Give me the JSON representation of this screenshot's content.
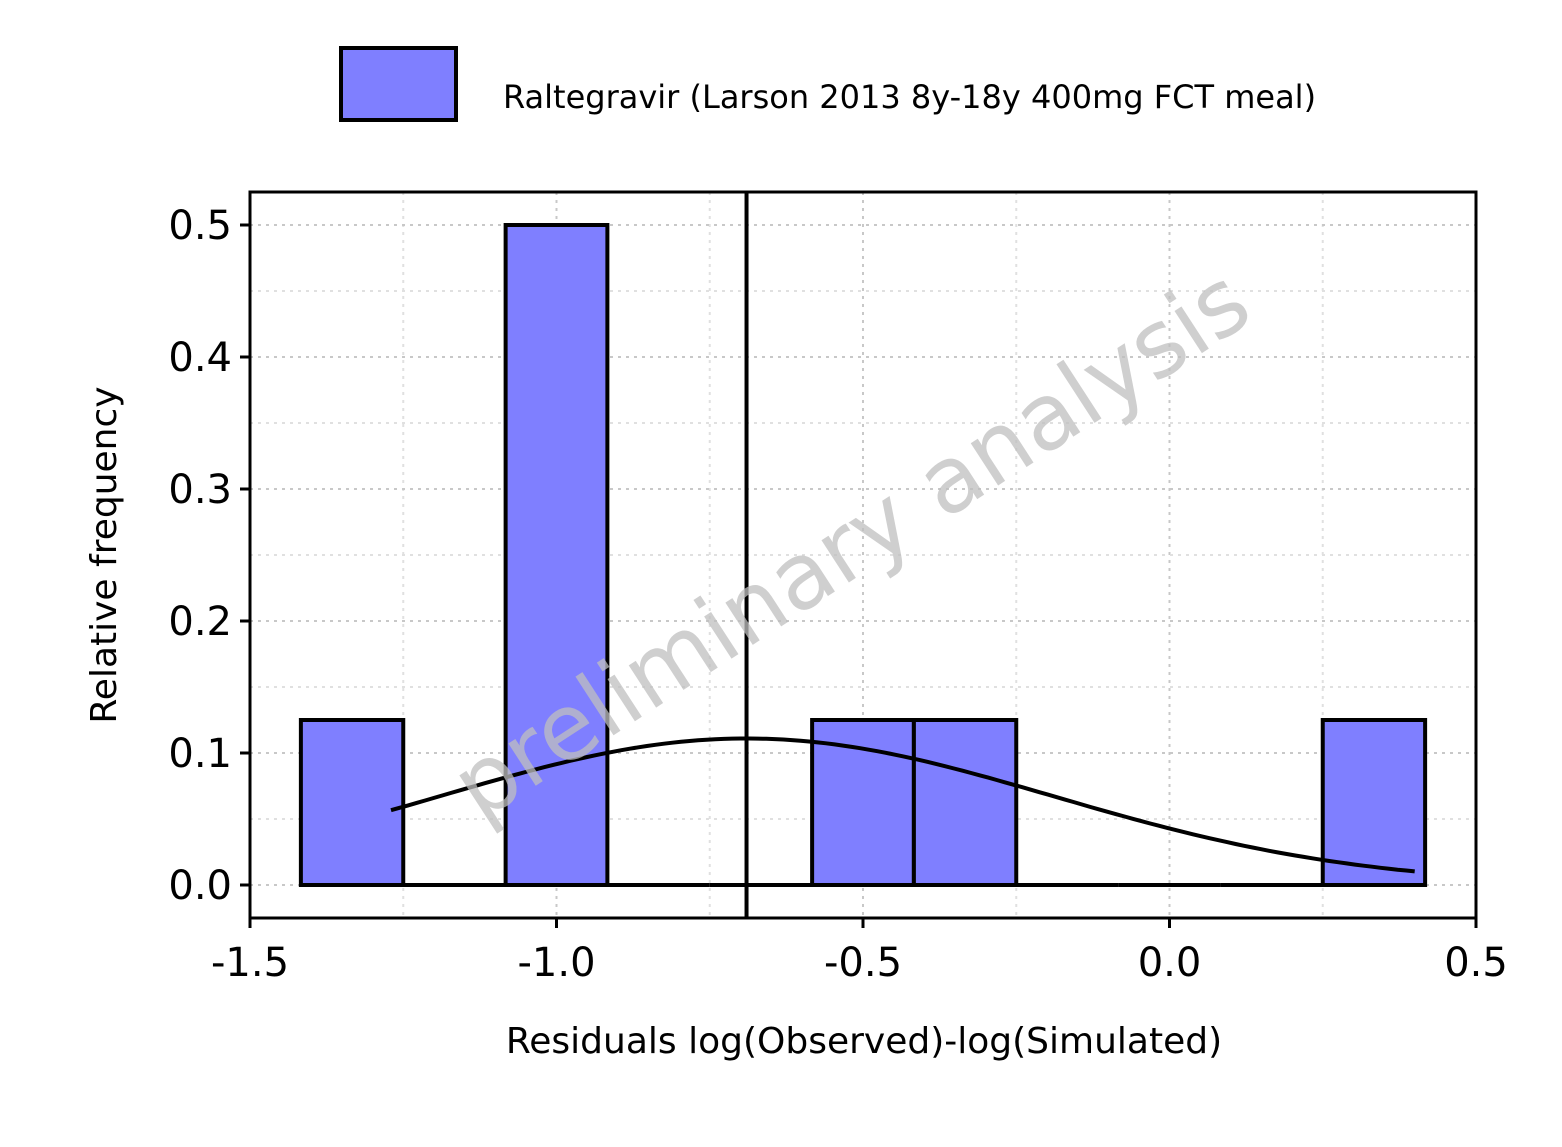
{
  "chart_data": {
    "type": "bar",
    "xlabel": "Residuals log(Observed)-log(Simulated)",
    "ylabel": "Relative frequency",
    "xlim": [
      -1.5,
      0.5
    ],
    "ylim": [
      -0.025,
      0.525
    ],
    "x_ticks": [
      "-1.5",
      "-1.0",
      "-0.5",
      "0.0",
      "0.5"
    ],
    "y_ticks": [
      "0.0",
      "0.1",
      "0.2",
      "0.3",
      "0.4",
      "0.5"
    ],
    "grid": true,
    "legend_position": "top",
    "series": [
      {
        "name": "Raltegravir (Larson 2013 8y-18y 400mg FCT meal)",
        "color": "#7f7fff",
        "bins": [
          {
            "x0": -1.417,
            "x1": -1.25,
            "value": 0.125
          },
          {
            "x0": -1.25,
            "x1": -1.083,
            "value": 0.0
          },
          {
            "x0": -1.083,
            "x1": -0.917,
            "value": 0.5
          },
          {
            "x0": -0.917,
            "x1": -0.75,
            "value": 0.0
          },
          {
            "x0": -0.75,
            "x1": -0.583,
            "value": 0.0
          },
          {
            "x0": -0.583,
            "x1": -0.417,
            "value": 0.125
          },
          {
            "x0": -0.417,
            "x1": -0.25,
            "value": 0.125
          },
          {
            "x0": -0.25,
            "x1": -0.083,
            "value": 0.0
          },
          {
            "x0": -0.083,
            "x1": 0.083,
            "value": 0.0
          },
          {
            "x0": 0.083,
            "x1": 0.25,
            "value": 0.0
          },
          {
            "x0": 0.25,
            "x1": 0.417,
            "value": 0.125
          }
        ]
      }
    ],
    "density_curve": {
      "mean": -0.69,
      "sd": 0.5,
      "peak": 0.111,
      "x_range": [
        -1.27,
        0.4
      ]
    },
    "mean_line_x": -0.69,
    "watermark": "preliminary analysis"
  }
}
